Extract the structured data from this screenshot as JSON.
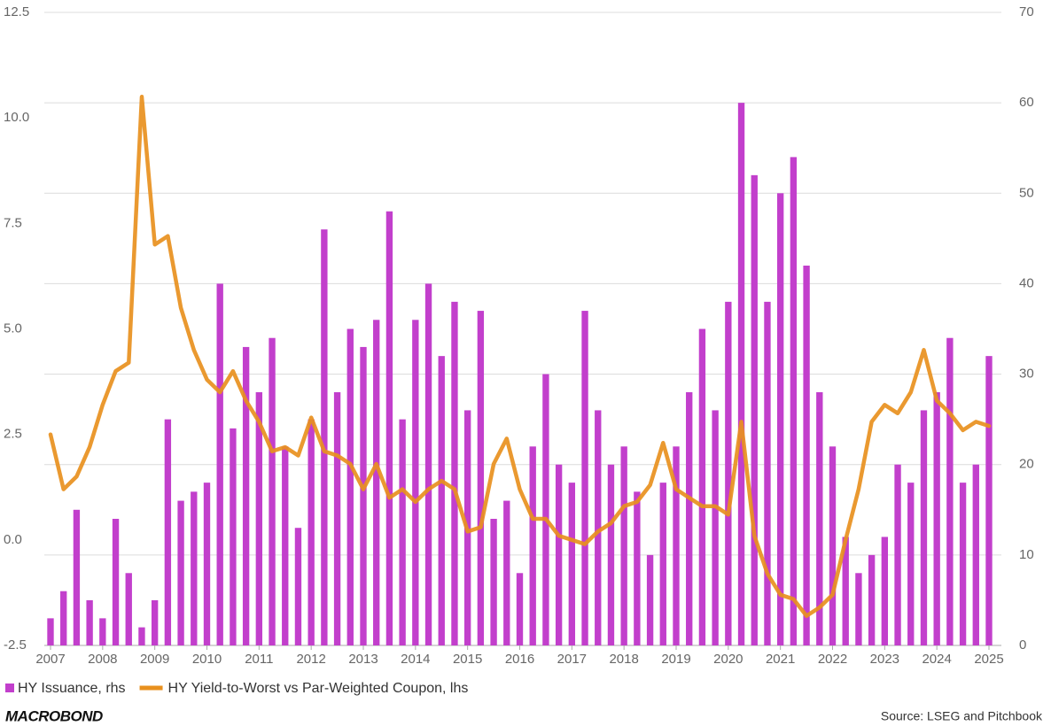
{
  "chart_data": {
    "type": "combo",
    "x": [
      2007,
      2007.25,
      2007.5,
      2007.75,
      2008,
      2008.25,
      2008.5,
      2008.75,
      2009,
      2009.25,
      2009.5,
      2009.75,
      2010,
      2010.25,
      2010.5,
      2010.75,
      2011,
      2011.25,
      2011.5,
      2011.75,
      2012,
      2012.25,
      2012.5,
      2012.75,
      2013,
      2013.25,
      2013.5,
      2013.75,
      2014,
      2014.25,
      2014.5,
      2014.75,
      2015,
      2015.25,
      2015.5,
      2015.75,
      2016,
      2016.25,
      2016.5,
      2016.75,
      2017,
      2017.25,
      2017.5,
      2017.75,
      2018,
      2018.25,
      2018.5,
      2018.75,
      2019,
      2019.25,
      2019.5,
      2019.75,
      2020,
      2020.25,
      2020.5,
      2020.75,
      2021,
      2021.25,
      2021.5,
      2021.75,
      2022,
      2022.25,
      2022.5,
      2022.75,
      2023,
      2023.25,
      2023.5,
      2023.75,
      2024,
      2024.25,
      2024.5,
      2024.75,
      2025
    ],
    "series": [
      {
        "name": "HY Issuance, rhs",
        "type": "bar",
        "axis": "y2",
        "color": "#c23fcc",
        "values": [
          3,
          6,
          15,
          5,
          3,
          14,
          8,
          2,
          5,
          25,
          16,
          17,
          18,
          40,
          24,
          33,
          28,
          34,
          22,
          13,
          25,
          46,
          28,
          35,
          33,
          36,
          48,
          25,
          36,
          40,
          32,
          38,
          26,
          37,
          14,
          16,
          8,
          22,
          30,
          20,
          18,
          37,
          26,
          20,
          22,
          17,
          10,
          18,
          22,
          28,
          35,
          26,
          38,
          60,
          52,
          38,
          50,
          54,
          42,
          28,
          22,
          12,
          8,
          10,
          12,
          20,
          18,
          26,
          28,
          34,
          18,
          20,
          32
        ]
      },
      {
        "name": "HY Yield-to-Worst vs Par-Weighted Coupon, lhs",
        "type": "line",
        "axis": "y",
        "color": "#e8901e",
        "values": [
          2.5,
          1.2,
          1.5,
          2.2,
          3.2,
          4.0,
          4.2,
          10.5,
          7.0,
          7.2,
          5.5,
          4.5,
          3.8,
          3.5,
          4.0,
          3.3,
          2.8,
          2.1,
          2.2,
          2.0,
          2.9,
          2.1,
          2.0,
          1.8,
          1.2,
          1.8,
          1.0,
          1.2,
          0.9,
          1.2,
          1.4,
          1.2,
          0.2,
          0.3,
          1.8,
          2.4,
          1.2,
          0.5,
          0.5,
          0.1,
          0.0,
          -0.1,
          0.2,
          0.4,
          0.8,
          0.9,
          1.3,
          2.3,
          1.2,
          1.0,
          0.8,
          0.8,
          0.6,
          2.8,
          0.1,
          -0.8,
          -1.3,
          -1.4,
          -1.8,
          -1.6,
          -1.3,
          0.0,
          1.2,
          2.8,
          3.2,
          3.0,
          3.5,
          4.5,
          3.3,
          3.0,
          2.6,
          2.8,
          2.7
        ]
      }
    ],
    "xlim": [
      2007,
      2025
    ],
    "xticks": [
      2007,
      2008,
      2009,
      2010,
      2011,
      2012,
      2013,
      2014,
      2015,
      2016,
      2017,
      2018,
      2019,
      2020,
      2021,
      2022,
      2023,
      2024,
      2025
    ],
    "ylim": [
      -2.5,
      12.5
    ],
    "yticks": [
      -2.5,
      {
        "value": 0,
        "label": "0.0"
      },
      2.5,
      {
        "value": 5,
        "label": "5.0"
      },
      7.5,
      {
        "value": 10,
        "label": "10.0"
      },
      12.5
    ],
    "y2lim": [
      0,
      70
    ],
    "y2ticks": [
      0,
      10,
      20,
      30,
      40,
      50,
      60,
      70
    ],
    "grid": true,
    "logo": "MACROBOND",
    "source": "Source: LSEG and Pitchbook"
  }
}
